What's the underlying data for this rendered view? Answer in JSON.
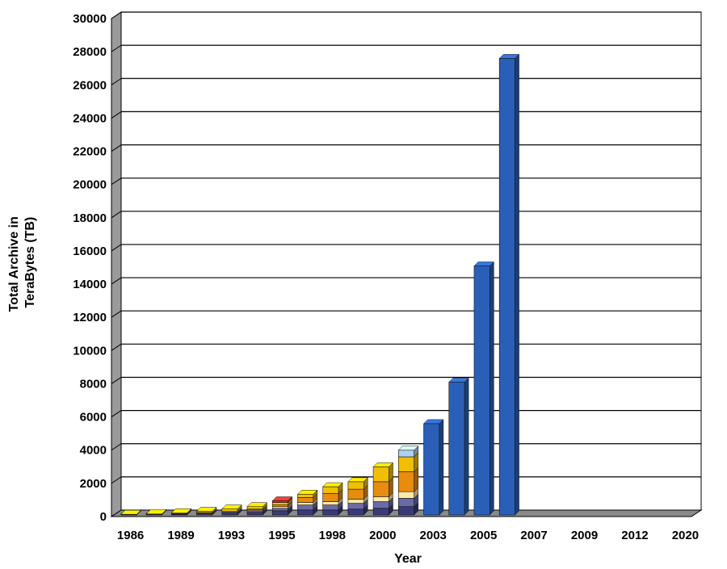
{
  "chart_data": {
    "type": "bar",
    "stacked": true,
    "three_d": true,
    "xlabel": "Year",
    "ylabel_lines": [
      "Total Archive in",
      "TeraBytes (TB)"
    ],
    "ylim": [
      0,
      30000
    ],
    "yticks": [
      0,
      2000,
      4000,
      6000,
      8000,
      10000,
      12000,
      14000,
      16000,
      18000,
      20000,
      22000,
      24000,
      26000,
      28000,
      30000
    ],
    "grid": true,
    "legend": "none",
    "categories": [
      "1986",
      "",
      "1989",
      "",
      "1993",
      "",
      "1995",
      "",
      "1998",
      "",
      "2000",
      "",
      "2003",
      "",
      "2005",
      "",
      "2007",
      "",
      "2009",
      "",
      "2012",
      "",
      "2020"
    ],
    "colors": [
      "#3a3a7a",
      "#6a6aa8",
      "#ffe9a8",
      "#e88c10",
      "#f0c000",
      "#b0d0f0",
      "#2a5fb8",
      "#d03030"
    ],
    "series": [
      {
        "values": [
          10,
          20,
          30,
          60,
          100,
          150,
          250,
          300,
          300,
          350,
          400,
          500,
          0,
          0,
          0,
          0,
          0,
          0,
          0,
          0,
          0,
          0,
          0
        ]
      },
      {
        "values": [
          10,
          10,
          30,
          50,
          80,
          100,
          150,
          300,
          300,
          350,
          400,
          500,
          0,
          0,
          0,
          0,
          0,
          0,
          0,
          0,
          0,
          0,
          0
        ]
      },
      {
        "values": [
          0,
          0,
          20,
          30,
          50,
          50,
          100,
          150,
          200,
          250,
          300,
          400,
          0,
          0,
          0,
          0,
          0,
          0,
          0,
          0,
          0,
          0,
          0
        ]
      },
      {
        "values": [
          0,
          0,
          0,
          0,
          0,
          50,
          100,
          300,
          500,
          600,
          900,
          1200,
          0,
          0,
          0,
          0,
          0,
          0,
          0,
          0,
          0,
          0,
          0
        ]
      },
      {
        "values": [
          20,
          30,
          50,
          80,
          130,
          150,
          150,
          200,
          400,
          450,
          900,
          900,
          0,
          0,
          0,
          0,
          0,
          0,
          0,
          0,
          0,
          0,
          0
        ]
      },
      {
        "values": [
          0,
          0,
          0,
          0,
          0,
          0,
          0,
          0,
          0,
          0,
          0,
          400,
          0,
          0,
          0,
          0,
          0,
          0,
          0,
          0,
          0,
          0,
          0
        ]
      },
      {
        "values": [
          0,
          0,
          0,
          0,
          0,
          0,
          0,
          0,
          0,
          0,
          0,
          0,
          5500,
          8000,
          15000,
          27500,
          0,
          0,
          0,
          0,
          0,
          0,
          0
        ]
      },
      {
        "values": [
          0,
          0,
          0,
          0,
          0,
          0,
          100,
          0,
          0,
          0,
          0,
          0,
          0,
          0,
          0,
          0,
          0,
          0,
          0,
          0,
          0,
          0,
          0
        ]
      }
    ]
  }
}
